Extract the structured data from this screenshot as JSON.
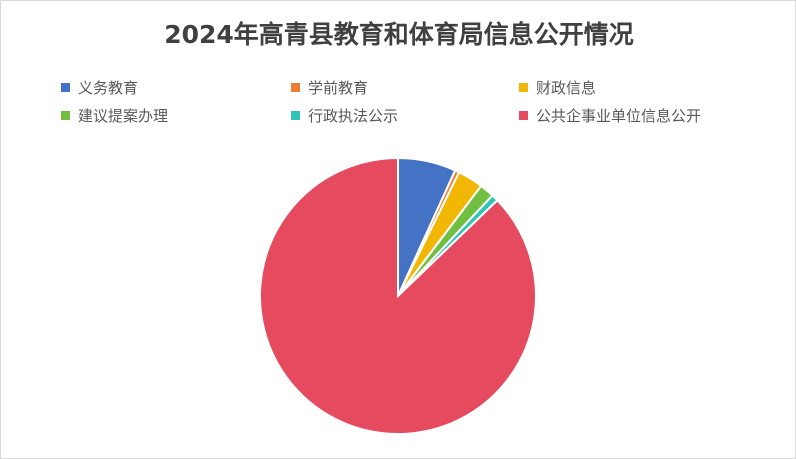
{
  "chart_data": {
    "type": "pie",
    "title": "2024年高青县教育和体育局信息公开情况",
    "legend_position": "top",
    "start_angle": "12 o'clock, clockwise",
    "slices": [
      {
        "name": "义务教育",
        "value": 6.8,
        "color": "#4472C4"
      },
      {
        "name": "学前教育",
        "value": 0.5,
        "color": "#ED7D31"
      },
      {
        "name": "财政信息",
        "value": 3.0,
        "color": "#F2B705"
      },
      {
        "name": "建议提案办理",
        "value": 1.7,
        "color": "#70BF41"
      },
      {
        "name": "行政执法公示",
        "value": 0.8,
        "color": "#2EC4B6"
      },
      {
        "name": "公共企事业单位信息公开",
        "value": 87.2,
        "color": "#E64A5E"
      }
    ]
  }
}
